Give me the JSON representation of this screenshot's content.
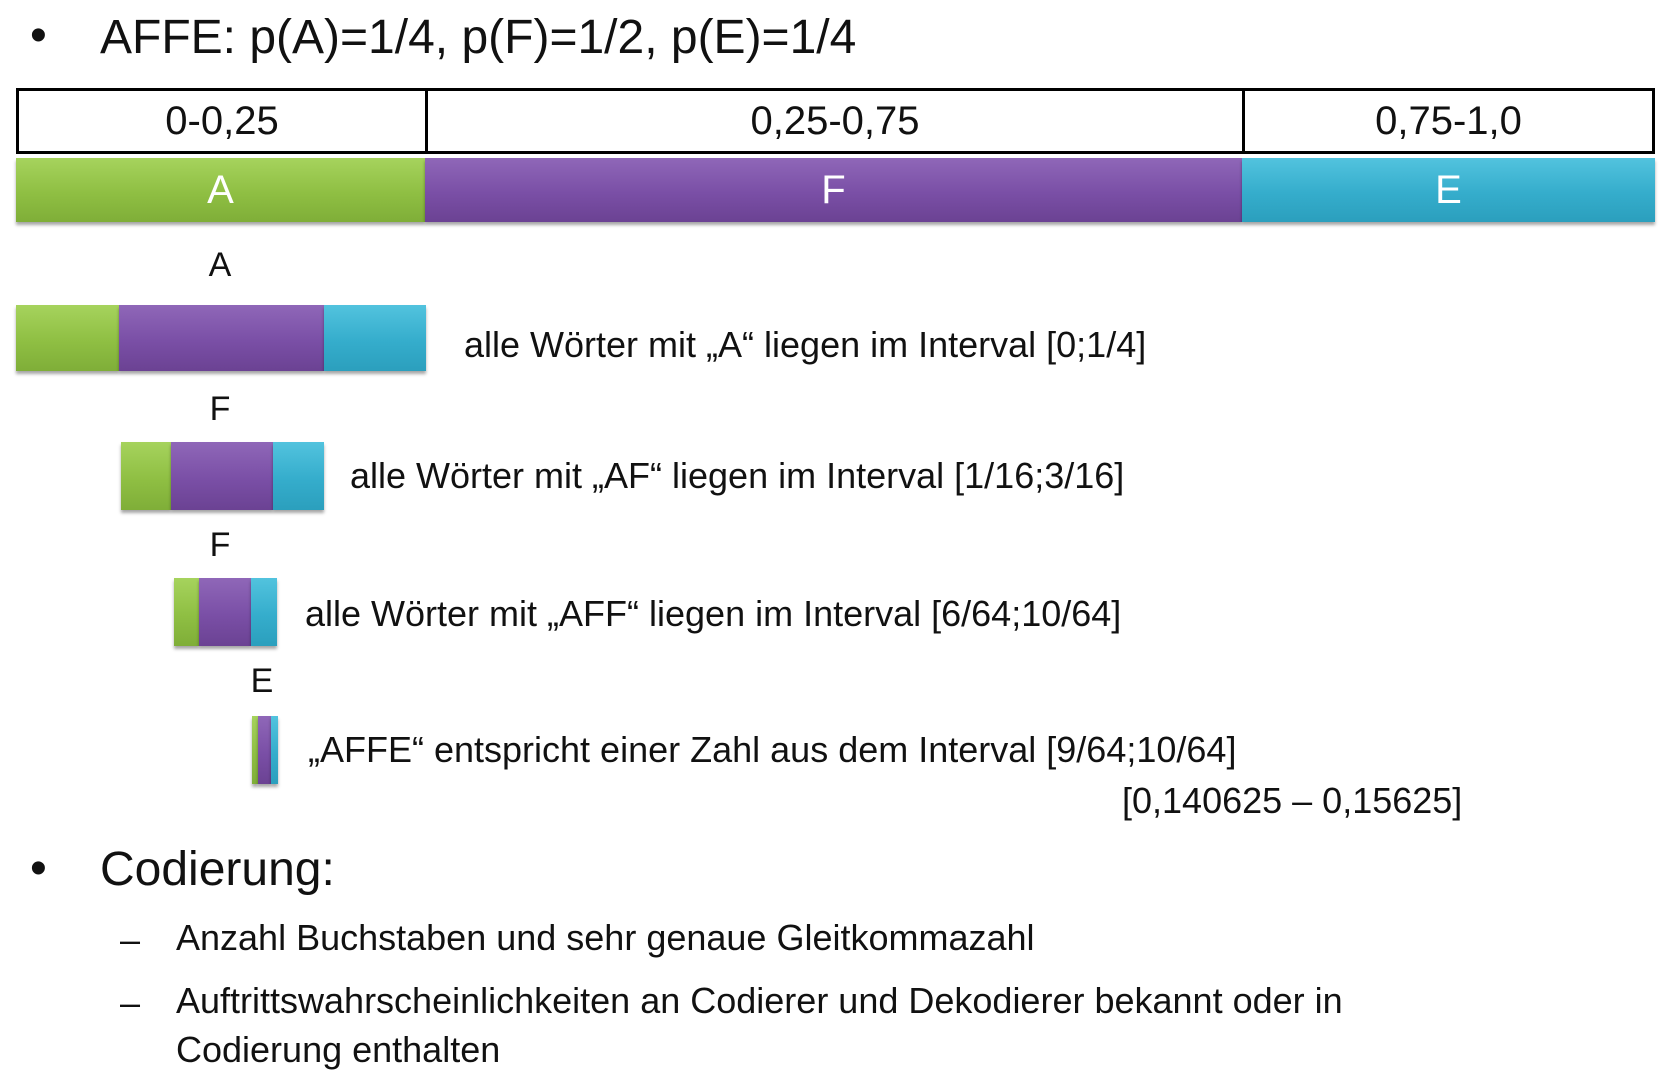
{
  "title": {
    "bullet": "•",
    "text": "AFFE: p(A)=1/4, p(F)=1/2, p(E)=1/4"
  },
  "ranges": [
    "0-0,25",
    "0,25-0,75",
    "0,75-1,0"
  ],
  "symbols": [
    "A",
    "F",
    "E"
  ],
  "colors": {
    "A": "#8fbf43",
    "F": "#7a4fa6",
    "E": "#35adcc"
  },
  "steps": [
    {
      "letter": "A",
      "note": "alle Wörter mit „A“ liegen im Interval [0;1/4]"
    },
    {
      "letter": "F",
      "note": "alle Wörter mit „AF“ liegen im Interval [1/16;3/16]"
    },
    {
      "letter": "F",
      "note": "alle Wörter mit „AFF“ liegen im Interval [6/64;10/64]"
    },
    {
      "letter": "E",
      "note": "„AFFE“ entspricht einer Zahl aus dem Interval [9/64;10/64]",
      "note2": "[0,140625 – 0,15625]"
    }
  ],
  "codierung": {
    "bullet": "•",
    "heading": "Codierung:",
    "dash": "–",
    "items": [
      "Anzahl Buchstaben und sehr genaue Gleitkommazahl",
      "Auftrittswahrscheinlichkeiten an Codierer und Dekodierer bekannt oder in Codierung enthalten"
    ]
  }
}
